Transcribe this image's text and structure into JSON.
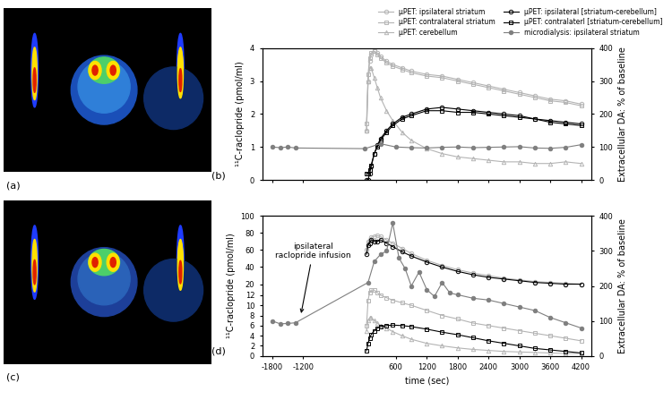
{
  "images": [
    {
      "panel_label": "(a)"
    },
    {
      "panel_label": "(c)"
    }
  ],
  "chart_data": [
    {
      "type": "line",
      "panel_label": "(b)",
      "legend": "upper right",
      "tick_labels": "y",
      "ylabel": "¹¹C-raclopride (pmol/ml)",
      "y2label": "Extracellular DA: % of baseline",
      "xlim": [
        -2000,
        4400
      ],
      "xticks": [
        -1800,
        -1200,
        600,
        1200,
        1800,
        2400,
        3000,
        3600,
        4200
      ],
      "ylim": [
        0,
        4
      ],
      "yticks": [
        0,
        1,
        2,
        3,
        4
      ],
      "y2lim": [
        0,
        400
      ],
      "y2ticks": [
        0,
        100,
        200,
        300,
        400
      ],
      "series": [
        {
          "name": "μPET: ipsilateral striatum",
          "color": "#b4b4b4",
          "marker": "circle",
          "line_style": "solid",
          "x": [
            30,
            60,
            90,
            120,
            180,
            240,
            300,
            420,
            540,
            720,
            900,
            1200,
            1500,
            1800,
            2100,
            2400,
            2700,
            3000,
            3300,
            3600,
            3900,
            4200
          ],
          "values": [
            1.5,
            3.0,
            3.6,
            3.8,
            3.9,
            3.85,
            3.75,
            3.6,
            3.5,
            3.4,
            3.3,
            3.2,
            3.15,
            3.05,
            2.95,
            2.85,
            2.75,
            2.65,
            2.55,
            2.45,
            2.4,
            2.3
          ]
        },
        {
          "name": "μPET: contralateral striatum",
          "color": "#b4b4b4",
          "marker": "square",
          "line_style": "solid",
          "x": [
            30,
            60,
            90,
            120,
            180,
            240,
            300,
            420,
            540,
            720,
            900,
            1200,
            1500,
            1800,
            2100,
            2400,
            2700,
            3000,
            3300,
            3600,
            3900,
            4200
          ],
          "values": [
            1.7,
            3.2,
            3.7,
            3.85,
            3.9,
            3.8,
            3.7,
            3.55,
            3.45,
            3.35,
            3.25,
            3.15,
            3.1,
            3.0,
            2.9,
            2.8,
            2.7,
            2.6,
            2.5,
            2.4,
            2.35,
            2.25
          ]
        },
        {
          "name": "μPET: cerebellum",
          "color": "#b4b4b4",
          "marker": "triangle",
          "line_style": "solid",
          "x": [
            30,
            60,
            90,
            120,
            180,
            240,
            300,
            420,
            540,
            720,
            900,
            1200,
            1500,
            1800,
            2100,
            2400,
            2700,
            3000,
            3300,
            3600,
            3900,
            4200
          ],
          "values": [
            1.5,
            3.0,
            3.4,
            3.4,
            3.1,
            2.8,
            2.5,
            2.1,
            1.8,
            1.45,
            1.2,
            0.95,
            0.8,
            0.7,
            0.65,
            0.6,
            0.55,
            0.55,
            0.5,
            0.5,
            0.55,
            0.5
          ]
        },
        {
          "name": "μPET: ipsilateral [striatum-cerebellum]",
          "color": "#000000",
          "marker": "circle",
          "line_style": "solid",
          "x": [
            30,
            60,
            90,
            120,
            180,
            240,
            300,
            420,
            540,
            720,
            900,
            1200,
            1500,
            1800,
            2100,
            2400,
            2700,
            3000,
            3300,
            3600,
            3900,
            4200
          ],
          "values": [
            0.0,
            0.0,
            0.2,
            0.4,
            0.8,
            1.05,
            1.25,
            1.5,
            1.7,
            1.9,
            2.0,
            2.15,
            2.2,
            2.15,
            2.1,
            2.05,
            2.0,
            1.95,
            1.85,
            1.8,
            1.75,
            1.7
          ]
        },
        {
          "name": "μPET: contralaterl [striatum-cerebellum]",
          "color": "#000000",
          "marker": "square",
          "line_style": "solid",
          "x": [
            30,
            60,
            90,
            120,
            180,
            240,
            300,
            420,
            540,
            720,
            900,
            1200,
            1500,
            1800,
            2100,
            2400,
            2700,
            3000,
            3300,
            3600,
            3900,
            4200
          ],
          "values": [
            0.2,
            0.2,
            0.3,
            0.45,
            0.8,
            1.0,
            1.2,
            1.45,
            1.65,
            1.85,
            1.95,
            2.1,
            2.1,
            2.05,
            2.05,
            2.0,
            1.95,
            1.9,
            1.85,
            1.75,
            1.7,
            1.65
          ]
        },
        {
          "name": "microdialysis: ipsilateral striatum",
          "color": "#7f7f7f",
          "marker": "filled circle",
          "line_style": "solid",
          "axis": "y2",
          "x": [
            -1800,
            -1650,
            -1500,
            -1350,
            0,
            300,
            600,
            900,
            1200,
            1500,
            1800,
            2100,
            2400,
            2700,
            3000,
            3300,
            3600,
            3900,
            4200
          ],
          "values": [
            100,
            98,
            100,
            97,
            95,
            110,
            100,
            98,
            97,
            99,
            100,
            98,
            99,
            100,
            101,
            97,
            96,
            99,
            107
          ]
        }
      ]
    },
    {
      "type": "line",
      "panel_label": "(d)",
      "xlabel": "time (sec)",
      "ylabel": "¹¹C-raclopride (pmol/ml)",
      "y2label": "Extracellular DA: % of baseline",
      "xlim": [
        -2000,
        4400
      ],
      "xticks": [
        -1800,
        -1200,
        600,
        1200,
        1800,
        2400,
        3000,
        3600,
        4200
      ],
      "ylim": [
        0,
        100
      ],
      "yticks": [
        0,
        2,
        4,
        6,
        8,
        10,
        12,
        20,
        40,
        60,
        80,
        100
      ],
      "y2lim": [
        0,
        400
      ],
      "y2ticks": [
        0,
        100,
        200,
        300,
        400
      ],
      "annotations": [
        {
          "text": "ipsilateral\nraclopride infusion",
          "x": -1250,
          "y": 115,
          "axis": "y2"
        }
      ],
      "series": [
        {
          "name": "μPET: ipsilateral striatum",
          "color": "#b4b4b4",
          "marker": "circle",
          "line_style": "solid",
          "x": [
            30,
            60,
            90,
            120,
            180,
            240,
            300,
            420,
            540,
            720,
            900,
            1200,
            1500,
            1800,
            2100,
            2400,
            2700,
            3000,
            3300,
            3600,
            3900,
            4200
          ],
          "values": [
            60,
            70,
            72,
            75,
            76,
            77,
            76,
            72,
            68,
            62,
            56,
            48,
            42,
            37,
            33,
            30,
            27,
            25,
            23,
            22,
            21,
            20
          ]
        },
        {
          "name": "μPET: contralateral striatum",
          "color": "#b4b4b4",
          "marker": "square",
          "line_style": "solid",
          "x": [
            30,
            60,
            90,
            120,
            180,
            240,
            300,
            420,
            540,
            720,
            900,
            1200,
            1500,
            1800,
            2100,
            2400,
            2700,
            3000,
            3300,
            3600,
            3900,
            4200
          ],
          "values": [
            6,
            11,
            12.5,
            13,
            13,
            12.5,
            12,
            11.5,
            11,
            10.5,
            10,
            9,
            8,
            7.3,
            6.5,
            6,
            5.5,
            5,
            4.5,
            4,
            3.5,
            3
          ]
        },
        {
          "name": "μPET: cerebellum",
          "color": "#b4b4b4",
          "marker": "triangle",
          "line_style": "solid",
          "x": [
            30,
            60,
            90,
            120,
            180,
            240,
            300,
            420,
            540,
            720,
            900,
            1200,
            1500,
            1800,
            2100,
            2400,
            2700,
            3000,
            3300,
            3600,
            3900,
            4200
          ],
          "values": [
            5,
            7,
            7.5,
            7.5,
            7,
            6.5,
            6,
            5.5,
            4.8,
            4,
            3.3,
            2.5,
            2,
            1.6,
            1.3,
            1.1,
            0.9,
            0.8,
            0.7,
            0.6,
            0.5,
            0.5
          ]
        },
        {
          "name": "μPET: ipsilateral [striatum-cerebellum]",
          "color": "#000000",
          "marker": "circle",
          "line_style": "solid",
          "x": [
            30,
            60,
            90,
            120,
            180,
            240,
            300,
            420,
            540,
            720,
            900,
            1200,
            1500,
            1800,
            2100,
            2400,
            2700,
            3000,
            3300,
            3600,
            3900,
            4200
          ],
          "values": [
            55,
            66,
            68,
            72,
            70,
            70,
            72,
            68,
            64,
            58,
            53,
            46,
            40,
            35,
            31,
            28,
            26,
            24,
            22,
            21,
            20,
            20
          ]
        },
        {
          "name": "μPET: contralaterl [striatum-cerebellum]",
          "color": "#000000",
          "marker": "square",
          "line_style": "solid",
          "x": [
            30,
            60,
            90,
            120,
            180,
            240,
            300,
            420,
            540,
            720,
            900,
            1200,
            1500,
            1800,
            2100,
            2400,
            2700,
            3000,
            3300,
            3600,
            3900,
            4200
          ],
          "values": [
            1,
            2.5,
            3.5,
            4.2,
            5,
            5.5,
            5.8,
            6,
            6.1,
            6,
            5.8,
            5.3,
            4.7,
            4.2,
            3.6,
            3.0,
            2.5,
            2.0,
            1.5,
            1.2,
            0.9,
            0.6
          ]
        },
        {
          "name": "microdialysis: ipsilateral striatum",
          "color": "#7f7f7f",
          "marker": "filled circle",
          "line_style": "solid",
          "axis": "y2",
          "x": [
            -1800,
            -1650,
            -1500,
            -1350,
            60,
            180,
            300,
            420,
            540,
            660,
            780,
            900,
            1050,
            1200,
            1350,
            1500,
            1650,
            1800,
            2100,
            2400,
            2700,
            3000,
            3300,
            3600,
            3900,
            4200
          ],
          "values": [
            100,
            92,
            93,
            95,
            210,
            270,
            290,
            300,
            380,
            280,
            250,
            200,
            240,
            190,
            170,
            210,
            180,
            175,
            165,
            160,
            150,
            140,
            130,
            110,
            95,
            80
          ]
        }
      ]
    }
  ]
}
